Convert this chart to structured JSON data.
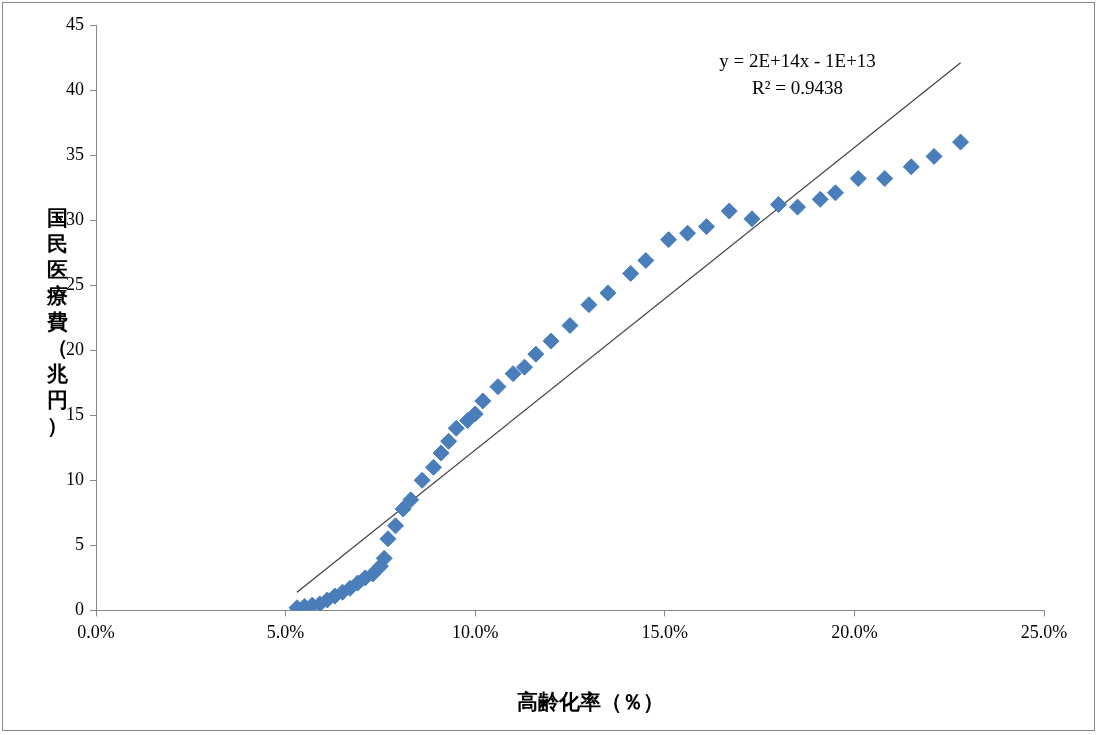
{
  "chart_data": {
    "type": "scatter",
    "xlabel": "高齢化率（％）",
    "ylabel": "国民医療費（兆円）",
    "xlim": [
      0,
      25
    ],
    "xticks": [
      {
        "value": 0,
        "label": "0.0%"
      },
      {
        "value": 5,
        "label": "5.0%"
      },
      {
        "value": 10,
        "label": "10.0%"
      },
      {
        "value": 15,
        "label": "15.0%"
      },
      {
        "value": 20,
        "label": "20.0%"
      },
      {
        "value": 25,
        "label": "25.0%"
      }
    ],
    "ylim": [
      0,
      45
    ],
    "yticks": [
      0,
      5,
      10,
      15,
      20,
      25,
      30,
      35,
      40,
      45
    ],
    "grid": false,
    "legend": false,
    "annotations": [
      "y = 2E+14x - 1E+13",
      "R² = 0.9438"
    ],
    "series": [
      {
        "marker": "diamond",
        "color": "#4a7ebb",
        "x": [
          5.3,
          5.5,
          5.7,
          5.9,
          6.1,
          6.3,
          6.5,
          6.7,
          6.9,
          7.1,
          7.3,
          7.5,
          7.6,
          7.7,
          7.9,
          8.1,
          8.3,
          8.6,
          8.9,
          9.1,
          9.3,
          9.5,
          9.8,
          10.0,
          10.2,
          10.6,
          11.0,
          11.3,
          11.6,
          12.0,
          12.5,
          13.0,
          13.5,
          14.1,
          14.5,
          15.1,
          15.6,
          16.1,
          16.7,
          17.3,
          18.0,
          18.5,
          19.1,
          19.5,
          20.1,
          20.8,
          21.5,
          22.1,
          22.8
        ],
        "values": [
          0.2,
          0.3,
          0.4,
          0.5,
          0.8,
          1.1,
          1.4,
          1.7,
          2.1,
          2.5,
          2.8,
          3.4,
          4.0,
          5.5,
          6.5,
          7.8,
          8.5,
          10.0,
          11.0,
          12.1,
          13.0,
          14.0,
          14.6,
          15.1,
          16.1,
          17.2,
          18.2,
          18.7,
          19.7,
          20.7,
          21.9,
          23.5,
          24.4,
          25.9,
          26.9,
          28.5,
          29.0,
          29.5,
          30.7,
          30.1,
          31.2,
          31.0,
          31.6,
          32.1,
          33.2,
          33.2,
          34.1,
          34.9,
          36.0
        ]
      },
      {
        "type": "line",
        "color": "#404040",
        "x": [
          5.3,
          22.8
        ],
        "values": [
          1.4,
          42.1
        ]
      }
    ]
  }
}
